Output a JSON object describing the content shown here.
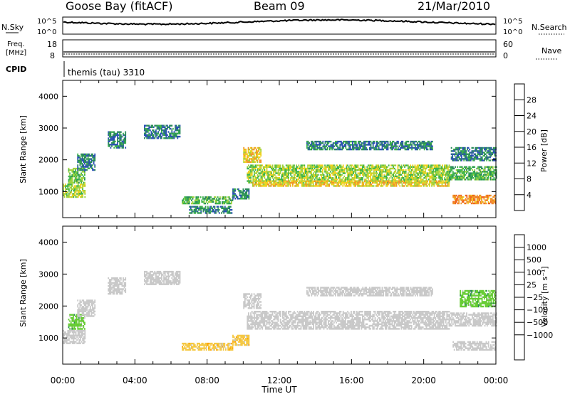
{
  "header": {
    "station": "Goose Bay (fitACF)",
    "beam": "Beam 09",
    "date": "21/Mar/2010"
  },
  "noise_panel": {
    "left_label": "N.Sky",
    "right_label": "N.Search",
    "left_ticks": [
      "10^5",
      "10^0"
    ],
    "right_ticks": [
      "10^5",
      "10^0"
    ]
  },
  "freq_panel": {
    "left_label_1": "Freq.",
    "left_label_2": "[MHz]",
    "left_ticks": [
      "18",
      "8"
    ],
    "right_ticks": [
      "60",
      "0"
    ],
    "right_label": "Nave"
  },
  "cpid": {
    "label": "CPID",
    "value": "themis (tau) 3310"
  },
  "colors": {
    "power": [
      "#1a1acc",
      "#2a4fb5",
      "#2a8a5a",
      "#3cb44b",
      "#a0d23c",
      "#f0d21e",
      "#f09628",
      "#f0641e",
      "#dc1e1e"
    ],
    "velocity": [
      "#e10000",
      "#ff6a00",
      "#ffa500",
      "#f5c842",
      "#c8c8c8",
      "#c8c8c8",
      "#66cc33",
      "#2e8b57",
      "#2f6db5",
      "#1a1aaa"
    ],
    "ground_scatter": "#c8c8c8"
  },
  "chart_data": [
    {
      "type": "heatmap",
      "name": "power",
      "x": "Time UT (hours)",
      "xlim": [
        0,
        24
      ],
      "ylim": [
        180,
        4500
      ],
      "ylabel": "Slant Range [km]",
      "yticks": [
        "1000",
        "2000",
        "3000",
        "4000"
      ],
      "colorbar": {
        "label": "Power [dB]",
        "ticks": [
          "4",
          "8",
          "12",
          "16",
          "20",
          "24",
          "28"
        ],
        "range": [
          0,
          32
        ]
      },
      "regions": [
        {
          "t": [
            0.0,
            1.2
          ],
          "r": [
            850,
            1250
          ],
          "value": 16
        },
        {
          "t": [
            0.3,
            1.2
          ],
          "r": [
            1300,
            1750
          ],
          "value": 14
        },
        {
          "t": [
            0.8,
            1.8
          ],
          "r": [
            1700,
            2200
          ],
          "value": 8
        },
        {
          "t": [
            2.5,
            3.5
          ],
          "r": [
            2400,
            2900
          ],
          "value": 8
        },
        {
          "t": [
            4.5,
            6.5
          ],
          "r": [
            2700,
            3100
          ],
          "value": 8
        },
        {
          "t": [
            6.6,
            9.4
          ],
          "r": [
            650,
            850
          ],
          "value": 12
        },
        {
          "t": [
            7.0,
            9.4
          ],
          "r": [
            350,
            550
          ],
          "value": 8
        },
        {
          "t": [
            9.4,
            10.3
          ],
          "r": [
            800,
            1100
          ],
          "value": 8
        },
        {
          "t": [
            10.0,
            11.0
          ],
          "r": [
            1950,
            2400
          ],
          "value": 20
        },
        {
          "t": [
            10.2,
            21.4
          ],
          "r": [
            1300,
            1850
          ],
          "value": 16
        },
        {
          "t": [
            10.5,
            21.4
          ],
          "r": [
            1200,
            1350
          ],
          "value": 20
        },
        {
          "t": [
            13.5,
            20.5
          ],
          "r": [
            2350,
            2600
          ],
          "value": 8
        },
        {
          "t": [
            21.4,
            24.0
          ],
          "r": [
            1400,
            1800
          ],
          "value": 12
        },
        {
          "t": [
            21.5,
            24.0
          ],
          "r": [
            2000,
            2400
          ],
          "value": 8
        },
        {
          "t": [
            21.6,
            24.0
          ],
          "r": [
            650,
            900
          ],
          "value": 24
        }
      ]
    },
    {
      "type": "heatmap",
      "name": "velocity",
      "x": "Time UT (hours)",
      "xlim": [
        0,
        24
      ],
      "ylim": [
        180,
        4500
      ],
      "ylabel": "Slant Range [km]",
      "yticks": [
        "1000",
        "2000",
        "3000",
        "4000"
      ],
      "xlabel": "Time UT",
      "xticks": [
        "00:00",
        "04:00",
        "08:00",
        "12:00",
        "16:00",
        "20:00",
        "00:00"
      ],
      "colorbar": {
        "label": "Velocity [m s⁻¹]",
        "ticks": [
          "1000",
          "500",
          "100",
          "25",
          "−25",
          "−100",
          "−500",
          "−1000"
        ]
      },
      "regions": [
        {
          "t": [
            0.0,
            1.2
          ],
          "r": [
            850,
            1250
          ],
          "value": "ground"
        },
        {
          "t": [
            0.3,
            1.2
          ],
          "r": [
            1300,
            1750
          ],
          "value": 100
        },
        {
          "t": [
            0.8,
            1.8
          ],
          "r": [
            1700,
            2200
          ],
          "value": "ground"
        },
        {
          "t": [
            2.5,
            3.5
          ],
          "r": [
            2400,
            2900
          ],
          "value": "ground"
        },
        {
          "t": [
            4.5,
            6.5
          ],
          "r": [
            2700,
            3100
          ],
          "value": "ground"
        },
        {
          "t": [
            6.6,
            9.4
          ],
          "r": [
            650,
            850
          ],
          "value": -100
        },
        {
          "t": [
            9.4,
            10.3
          ],
          "r": [
            800,
            1100
          ],
          "value": -100
        },
        {
          "t": [
            10.0,
            11.0
          ],
          "r": [
            1950,
            2400
          ],
          "value": "ground"
        },
        {
          "t": [
            10.2,
            21.4
          ],
          "r": [
            1300,
            1850
          ],
          "value": "ground"
        },
        {
          "t": [
            13.5,
            20.5
          ],
          "r": [
            2350,
            2600
          ],
          "value": "ground"
        },
        {
          "t": [
            21.4,
            24.0
          ],
          "r": [
            1400,
            1800
          ],
          "value": "ground"
        },
        {
          "t": [
            22.0,
            24.0
          ],
          "r": [
            2000,
            2500
          ],
          "value": 100
        },
        {
          "t": [
            21.6,
            24.0
          ],
          "r": [
            650,
            900
          ],
          "value": "ground"
        }
      ]
    }
  ]
}
